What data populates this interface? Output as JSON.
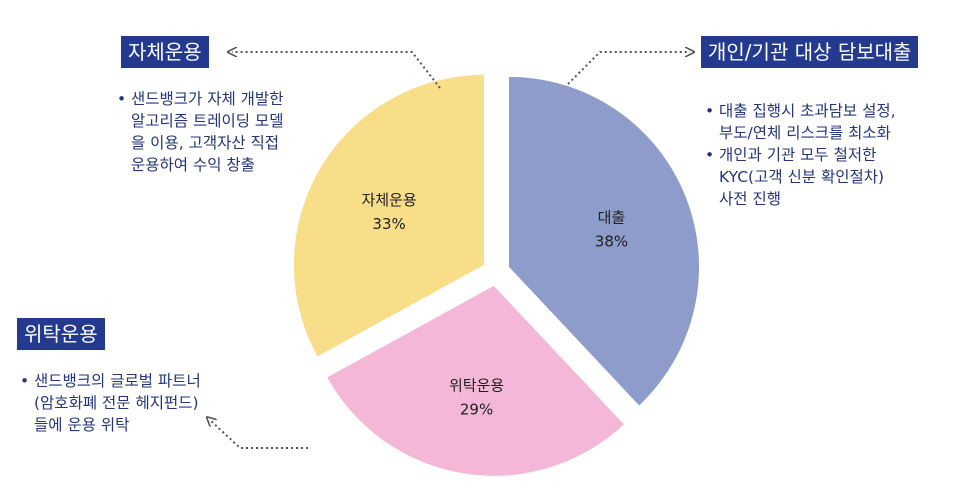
{
  "chart_data": {
    "type": "pie",
    "slices": [
      {
        "label": "대출",
        "value": 38,
        "display": "38%",
        "color": "#8d9ccb"
      },
      {
        "label": "위탁운용",
        "value": 29,
        "display": "29%",
        "color": "#f4b7d8"
      },
      {
        "label": "자체운용",
        "value": 33,
        "display": "33%",
        "color": "#f9de8a"
      }
    ]
  },
  "annotations": {
    "self": {
      "title": "자체운용",
      "bullets": [
        "샌드뱅크가 자체 개발한\n알고리즘 트레이딩 모델\n을 이용, 고객자산 직접\n운용하여 수익 창출"
      ]
    },
    "loan": {
      "title": "개인/기관 대상 담보대출",
      "bullets": [
        "대출 집행시 초과담보 설정,\n부도/연체 리스크를 최소화",
        "개인과 기관 모두 철저한\nKYC(고객 신분 확인절차)\n사전 진행"
      ]
    },
    "trust": {
      "title": "위탁운용",
      "bullets": [
        "샌드뱅크의 글로벌 파트너\n(암호화폐 전문 헤지펀드)\n들에 운용 위탁"
      ]
    }
  }
}
